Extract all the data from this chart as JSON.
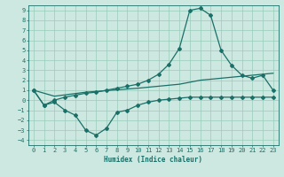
{
  "title": "",
  "xlabel": "Humidex (Indice chaleur)",
  "bg_color": "#cce8e0",
  "line_color": "#1a7068",
  "grid_color": "#99ccbb",
  "xlim": [
    -0.5,
    23.5
  ],
  "ylim": [
    -4.5,
    9.5
  ],
  "xticks": [
    0,
    1,
    2,
    3,
    4,
    5,
    6,
    7,
    8,
    9,
    10,
    11,
    12,
    13,
    14,
    15,
    16,
    17,
    18,
    19,
    20,
    21,
    22,
    23
  ],
  "yticks": [
    -4,
    -3,
    -2,
    -1,
    0,
    1,
    2,
    3,
    4,
    5,
    6,
    7,
    8,
    9
  ],
  "line1_x": [
    0,
    1,
    2,
    3,
    4,
    5,
    6,
    7,
    8,
    9,
    10,
    11,
    12,
    13,
    14,
    15,
    16,
    17,
    18,
    19,
    20,
    21,
    22,
    23
  ],
  "line1_y": [
    1.0,
    -0.5,
    0.0,
    0.3,
    0.5,
    0.7,
    0.8,
    1.0,
    1.2,
    1.4,
    1.6,
    2.0,
    2.6,
    3.6,
    5.2,
    9.0,
    9.2,
    8.5,
    5.0,
    3.5,
    2.5,
    2.2,
    2.5,
    1.0
  ],
  "line2_x": [
    0,
    2,
    5,
    10,
    14,
    15,
    16,
    18,
    19,
    20,
    21,
    22,
    23
  ],
  "line2_y": [
    1.0,
    0.4,
    0.8,
    1.2,
    1.6,
    1.8,
    2.0,
    2.2,
    2.3,
    2.4,
    2.5,
    2.6,
    2.7
  ],
  "line3_x": [
    0,
    1,
    2,
    3,
    4,
    5,
    6,
    7,
    8,
    9,
    10,
    11,
    12,
    13,
    14,
    15,
    16,
    17,
    18,
    19,
    20,
    21,
    22,
    23
  ],
  "line3_y": [
    1.0,
    -0.5,
    -0.2,
    -1.0,
    -1.5,
    -3.0,
    -3.5,
    -2.8,
    -1.2,
    -1.0,
    -0.5,
    -0.2,
    0.0,
    0.1,
    0.2,
    0.3,
    0.3,
    0.3,
    0.3,
    0.3,
    0.3,
    0.3,
    0.3,
    0.3
  ],
  "font_color": "#1a7068",
  "marker": "D",
  "markersize": 2.0,
  "linewidth": 0.9,
  "tick_fontsize": 5.0,
  "xlabel_fontsize": 5.5
}
